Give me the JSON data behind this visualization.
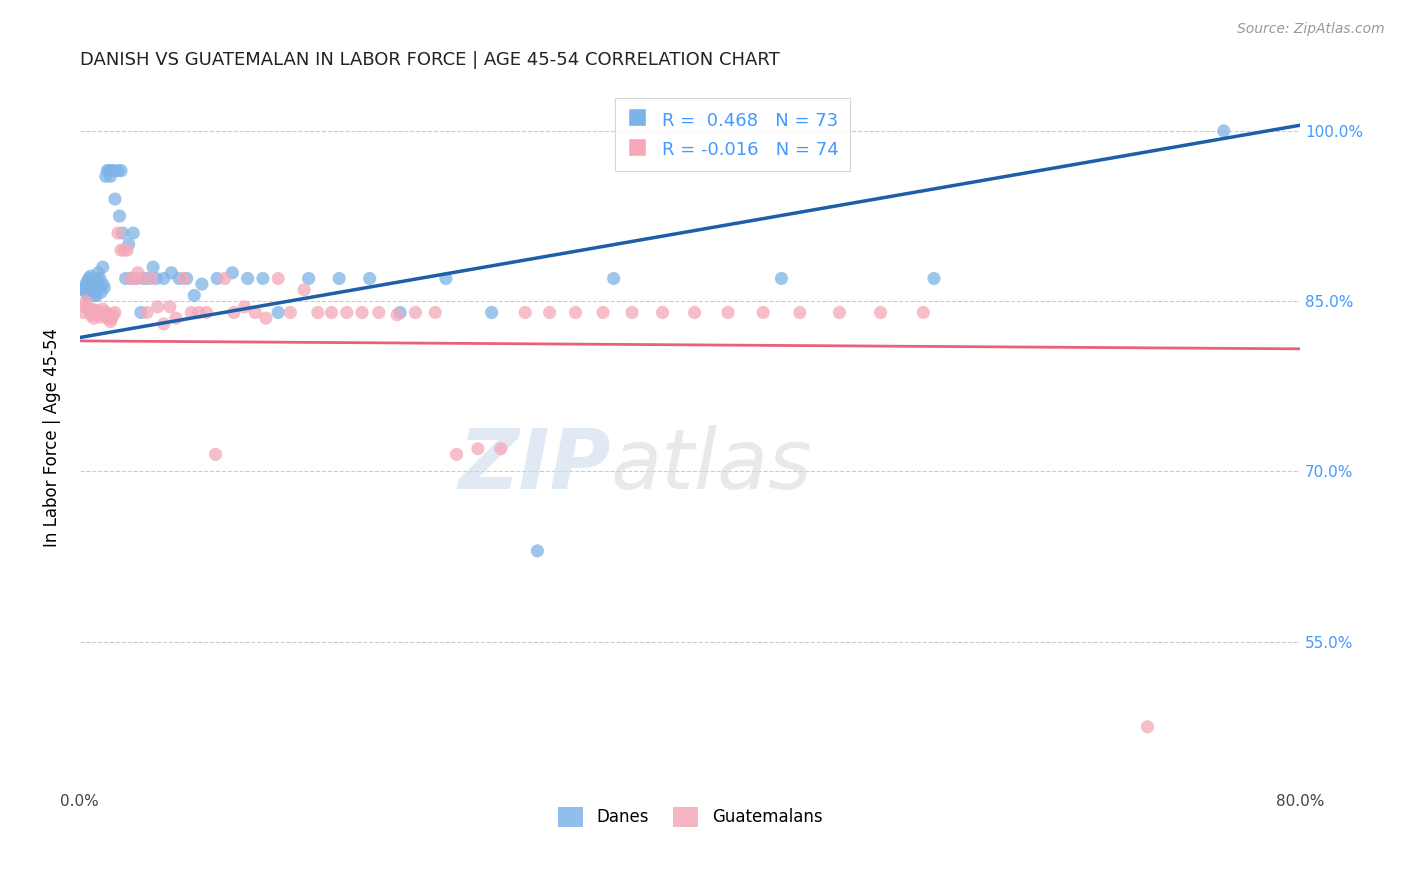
{
  "title": "DANISH VS GUATEMALAN IN LABOR FORCE | AGE 45-54 CORRELATION CHART",
  "source": "Source: ZipAtlas.com",
  "ylabel": "In Labor Force | Age 45-54",
  "xlim": [
    0.0,
    0.8
  ],
  "ylim": [
    0.42,
    1.04
  ],
  "xticks": [
    0.0,
    0.1,
    0.2,
    0.3,
    0.4,
    0.5,
    0.6,
    0.7,
    0.8
  ],
  "xticklabels": [
    "0.0%",
    "",
    "",
    "",
    "",
    "",
    "",
    "",
    "80.0%"
  ],
  "yticks": [
    0.55,
    0.7,
    0.85,
    1.0
  ],
  "yticklabels": [
    "55.0%",
    "70.0%",
    "85.0%",
    "100.0%"
  ],
  "grid_yticks": [
    0.55,
    0.7,
    0.85,
    1.0
  ],
  "danes_R": 0.468,
  "danes_N": 73,
  "guatemalans_R": -0.016,
  "guatemalans_N": 74,
  "danes_color": "#7EB3E8",
  "guatemalans_color": "#F4A8B8",
  "trend_danes_color": "#1E5FA8",
  "trend_guatemalans_color": "#E8607A",
  "danes_x": [
    0.002,
    0.003,
    0.004,
    0.004,
    0.005,
    0.005,
    0.006,
    0.006,
    0.006,
    0.007,
    0.007,
    0.007,
    0.008,
    0.008,
    0.008,
    0.009,
    0.009,
    0.01,
    0.01,
    0.01,
    0.011,
    0.011,
    0.012,
    0.012,
    0.013,
    0.013,
    0.014,
    0.015,
    0.015,
    0.016,
    0.017,
    0.018,
    0.019,
    0.02,
    0.021,
    0.022,
    0.023,
    0.025,
    0.026,
    0.027,
    0.028,
    0.03,
    0.032,
    0.033,
    0.035,
    0.037,
    0.04,
    0.042,
    0.045,
    0.048,
    0.05,
    0.055,
    0.06,
    0.065,
    0.07,
    0.075,
    0.08,
    0.09,
    0.1,
    0.11,
    0.12,
    0.13,
    0.15,
    0.17,
    0.19,
    0.21,
    0.24,
    0.27,
    0.3,
    0.35,
    0.46,
    0.56,
    0.75
  ],
  "danes_y": [
    0.86,
    0.862,
    0.858,
    0.865,
    0.855,
    0.868,
    0.862,
    0.87,
    0.855,
    0.86,
    0.858,
    0.872,
    0.865,
    0.86,
    0.868,
    0.858,
    0.862,
    0.855,
    0.865,
    0.87,
    0.868,
    0.855,
    0.86,
    0.875,
    0.862,
    0.87,
    0.858,
    0.865,
    0.88,
    0.862,
    0.96,
    0.965,
    0.965,
    0.96,
    0.965,
    0.965,
    0.94,
    0.965,
    0.925,
    0.965,
    0.91,
    0.87,
    0.9,
    0.87,
    0.91,
    0.87,
    0.84,
    0.87,
    0.87,
    0.88,
    0.87,
    0.87,
    0.875,
    0.87,
    0.87,
    0.855,
    0.865,
    0.87,
    0.875,
    0.87,
    0.87,
    0.84,
    0.87,
    0.87,
    0.87,
    0.84,
    0.87,
    0.84,
    0.63,
    0.87,
    0.87,
    0.87,
    1.0
  ],
  "guatemalans_x": [
    0.002,
    0.003,
    0.004,
    0.005,
    0.006,
    0.007,
    0.008,
    0.009,
    0.01,
    0.011,
    0.012,
    0.013,
    0.014,
    0.015,
    0.016,
    0.017,
    0.018,
    0.019,
    0.02,
    0.021,
    0.022,
    0.023,
    0.025,
    0.027,
    0.029,
    0.031,
    0.033,
    0.036,
    0.038,
    0.041,
    0.044,
    0.047,
    0.051,
    0.055,
    0.059,
    0.063,
    0.068,
    0.073,
    0.078,
    0.083,
    0.089,
    0.095,
    0.101,
    0.108,
    0.115,
    0.122,
    0.13,
    0.138,
    0.147,
    0.156,
    0.165,
    0.175,
    0.185,
    0.196,
    0.208,
    0.22,
    0.233,
    0.247,
    0.261,
    0.276,
    0.292,
    0.308,
    0.325,
    0.343,
    0.362,
    0.382,
    0.403,
    0.425,
    0.448,
    0.472,
    0.498,
    0.525,
    0.553,
    0.7
  ],
  "guatemalans_y": [
    0.84,
    0.845,
    0.85,
    0.845,
    0.842,
    0.838,
    0.843,
    0.835,
    0.84,
    0.842,
    0.838,
    0.836,
    0.84,
    0.843,
    0.838,
    0.84,
    0.835,
    0.838,
    0.832,
    0.835,
    0.838,
    0.84,
    0.91,
    0.895,
    0.895,
    0.895,
    0.87,
    0.87,
    0.875,
    0.87,
    0.84,
    0.87,
    0.845,
    0.83,
    0.845,
    0.835,
    0.87,
    0.84,
    0.84,
    0.84,
    0.715,
    0.87,
    0.84,
    0.845,
    0.84,
    0.835,
    0.87,
    0.84,
    0.86,
    0.84,
    0.84,
    0.84,
    0.84,
    0.84,
    0.838,
    0.84,
    0.84,
    0.715,
    0.72,
    0.72,
    0.84,
    0.84,
    0.84,
    0.84,
    0.84,
    0.84,
    0.84,
    0.84,
    0.84,
    0.84,
    0.84,
    0.84,
    0.84,
    0.475
  ],
  "background_color": "#ffffff",
  "watermark_zip": "ZIP",
  "watermark_atlas": "atlas",
  "legend_danes_label": "Danes",
  "legend_guatemalans_label": "Guatemalans"
}
